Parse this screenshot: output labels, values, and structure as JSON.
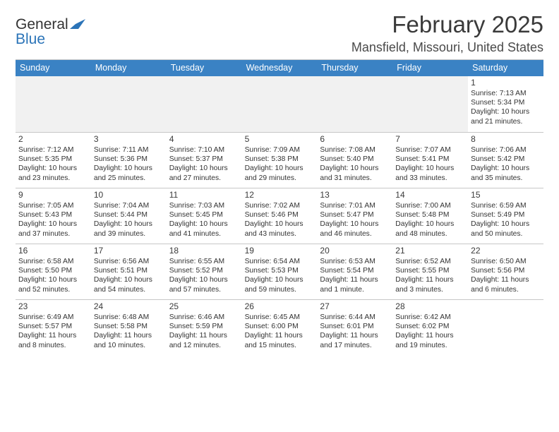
{
  "brand": {
    "word1": "General",
    "word2": "Blue"
  },
  "title": "February 2025",
  "location": "Mansfield, Missouri, United States",
  "colors": {
    "header_bg": "#3a82c4",
    "header_text": "#ffffff",
    "rule": "#c7c7c7",
    "brand_blue": "#2b74b8",
    "empty_row_bg": "#f1f1f1",
    "page_bg": "#ffffff",
    "text": "#333333"
  },
  "fonts": {
    "title_size_pt": 25,
    "location_size_pt": 13,
    "dayheader_size_pt": 9,
    "daynum_size_pt": 9,
    "body_size_pt": 8
  },
  "layout": {
    "columns": 7,
    "rows": 6,
    "week_start": "Sunday"
  },
  "day_labels": [
    "Sunday",
    "Monday",
    "Tuesday",
    "Wednesday",
    "Thursday",
    "Friday",
    "Saturday"
  ],
  "weeks": [
    [
      null,
      null,
      null,
      null,
      null,
      null,
      {
        "n": "1",
        "sunrise": "Sunrise: 7:13 AM",
        "sunset": "Sunset: 5:34 PM",
        "dl1": "Daylight: 10 hours",
        "dl2": "and 21 minutes."
      }
    ],
    [
      {
        "n": "2",
        "sunrise": "Sunrise: 7:12 AM",
        "sunset": "Sunset: 5:35 PM",
        "dl1": "Daylight: 10 hours",
        "dl2": "and 23 minutes."
      },
      {
        "n": "3",
        "sunrise": "Sunrise: 7:11 AM",
        "sunset": "Sunset: 5:36 PM",
        "dl1": "Daylight: 10 hours",
        "dl2": "and 25 minutes."
      },
      {
        "n": "4",
        "sunrise": "Sunrise: 7:10 AM",
        "sunset": "Sunset: 5:37 PM",
        "dl1": "Daylight: 10 hours",
        "dl2": "and 27 minutes."
      },
      {
        "n": "5",
        "sunrise": "Sunrise: 7:09 AM",
        "sunset": "Sunset: 5:38 PM",
        "dl1": "Daylight: 10 hours",
        "dl2": "and 29 minutes."
      },
      {
        "n": "6",
        "sunrise": "Sunrise: 7:08 AM",
        "sunset": "Sunset: 5:40 PM",
        "dl1": "Daylight: 10 hours",
        "dl2": "and 31 minutes."
      },
      {
        "n": "7",
        "sunrise": "Sunrise: 7:07 AM",
        "sunset": "Sunset: 5:41 PM",
        "dl1": "Daylight: 10 hours",
        "dl2": "and 33 minutes."
      },
      {
        "n": "8",
        "sunrise": "Sunrise: 7:06 AM",
        "sunset": "Sunset: 5:42 PM",
        "dl1": "Daylight: 10 hours",
        "dl2": "and 35 minutes."
      }
    ],
    [
      {
        "n": "9",
        "sunrise": "Sunrise: 7:05 AM",
        "sunset": "Sunset: 5:43 PM",
        "dl1": "Daylight: 10 hours",
        "dl2": "and 37 minutes."
      },
      {
        "n": "10",
        "sunrise": "Sunrise: 7:04 AM",
        "sunset": "Sunset: 5:44 PM",
        "dl1": "Daylight: 10 hours",
        "dl2": "and 39 minutes."
      },
      {
        "n": "11",
        "sunrise": "Sunrise: 7:03 AM",
        "sunset": "Sunset: 5:45 PM",
        "dl1": "Daylight: 10 hours",
        "dl2": "and 41 minutes."
      },
      {
        "n": "12",
        "sunrise": "Sunrise: 7:02 AM",
        "sunset": "Sunset: 5:46 PM",
        "dl1": "Daylight: 10 hours",
        "dl2": "and 43 minutes."
      },
      {
        "n": "13",
        "sunrise": "Sunrise: 7:01 AM",
        "sunset": "Sunset: 5:47 PM",
        "dl1": "Daylight: 10 hours",
        "dl2": "and 46 minutes."
      },
      {
        "n": "14",
        "sunrise": "Sunrise: 7:00 AM",
        "sunset": "Sunset: 5:48 PM",
        "dl1": "Daylight: 10 hours",
        "dl2": "and 48 minutes."
      },
      {
        "n": "15",
        "sunrise": "Sunrise: 6:59 AM",
        "sunset": "Sunset: 5:49 PM",
        "dl1": "Daylight: 10 hours",
        "dl2": "and 50 minutes."
      }
    ],
    [
      {
        "n": "16",
        "sunrise": "Sunrise: 6:58 AM",
        "sunset": "Sunset: 5:50 PM",
        "dl1": "Daylight: 10 hours",
        "dl2": "and 52 minutes."
      },
      {
        "n": "17",
        "sunrise": "Sunrise: 6:56 AM",
        "sunset": "Sunset: 5:51 PM",
        "dl1": "Daylight: 10 hours",
        "dl2": "and 54 minutes."
      },
      {
        "n": "18",
        "sunrise": "Sunrise: 6:55 AM",
        "sunset": "Sunset: 5:52 PM",
        "dl1": "Daylight: 10 hours",
        "dl2": "and 57 minutes."
      },
      {
        "n": "19",
        "sunrise": "Sunrise: 6:54 AM",
        "sunset": "Sunset: 5:53 PM",
        "dl1": "Daylight: 10 hours",
        "dl2": "and 59 minutes."
      },
      {
        "n": "20",
        "sunrise": "Sunrise: 6:53 AM",
        "sunset": "Sunset: 5:54 PM",
        "dl1": "Daylight: 11 hours",
        "dl2": "and 1 minute."
      },
      {
        "n": "21",
        "sunrise": "Sunrise: 6:52 AM",
        "sunset": "Sunset: 5:55 PM",
        "dl1": "Daylight: 11 hours",
        "dl2": "and 3 minutes."
      },
      {
        "n": "22",
        "sunrise": "Sunrise: 6:50 AM",
        "sunset": "Sunset: 5:56 PM",
        "dl1": "Daylight: 11 hours",
        "dl2": "and 6 minutes."
      }
    ],
    [
      {
        "n": "23",
        "sunrise": "Sunrise: 6:49 AM",
        "sunset": "Sunset: 5:57 PM",
        "dl1": "Daylight: 11 hours",
        "dl2": "and 8 minutes."
      },
      {
        "n": "24",
        "sunrise": "Sunrise: 6:48 AM",
        "sunset": "Sunset: 5:58 PM",
        "dl1": "Daylight: 11 hours",
        "dl2": "and 10 minutes."
      },
      {
        "n": "25",
        "sunrise": "Sunrise: 6:46 AM",
        "sunset": "Sunset: 5:59 PM",
        "dl1": "Daylight: 11 hours",
        "dl2": "and 12 minutes."
      },
      {
        "n": "26",
        "sunrise": "Sunrise: 6:45 AM",
        "sunset": "Sunset: 6:00 PM",
        "dl1": "Daylight: 11 hours",
        "dl2": "and 15 minutes."
      },
      {
        "n": "27",
        "sunrise": "Sunrise: 6:44 AM",
        "sunset": "Sunset: 6:01 PM",
        "dl1": "Daylight: 11 hours",
        "dl2": "and 17 minutes."
      },
      {
        "n": "28",
        "sunrise": "Sunrise: 6:42 AM",
        "sunset": "Sunset: 6:02 PM",
        "dl1": "Daylight: 11 hours",
        "dl2": "and 19 minutes."
      },
      null
    ]
  ]
}
